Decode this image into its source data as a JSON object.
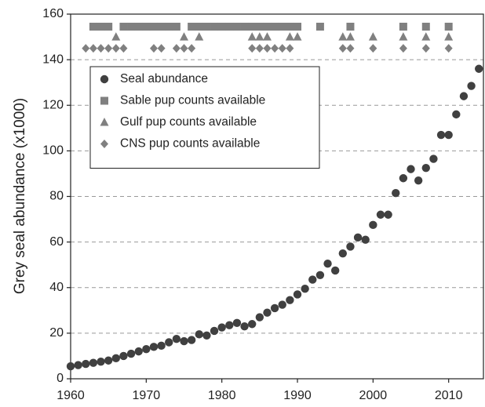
{
  "chart_data": {
    "type": "scatter",
    "ylabel": "Grey seal abundance (x1000)",
    "xlim": [
      1960,
      2014.6
    ],
    "ylim": [
      0,
      160
    ],
    "xticks": [
      1960,
      1970,
      1980,
      1990,
      2000,
      2010
    ],
    "yticks": [
      0,
      20,
      40,
      60,
      80,
      100,
      120,
      140,
      160
    ],
    "grid": true,
    "legend": "upper left",
    "series": [
      {
        "name": "Seal abundance",
        "marker": "circle",
        "color": "#404040",
        "x": [
          1960,
          1961,
          1962,
          1963,
          1964,
          1965,
          1966,
          1967,
          1968,
          1969,
          1970,
          1971,
          1972,
          1973,
          1974,
          1975,
          1976,
          1977,
          1978,
          1979,
          1980,
          1981,
          1982,
          1983,
          1984,
          1985,
          1986,
          1987,
          1988,
          1989,
          1990,
          1991,
          1992,
          1993,
          1994,
          1995,
          1996,
          1997,
          1998,
          1999,
          2000,
          2001,
          2002,
          2003,
          2004,
          2005,
          2006,
          2007,
          2008,
          2009,
          2010,
          2011,
          2012,
          2013,
          2014
        ],
        "values": [
          5.5,
          6,
          6.5,
          7,
          7.5,
          8,
          9,
          10,
          11,
          12,
          13,
          14,
          14.5,
          16,
          17.5,
          16.5,
          17,
          19.5,
          19,
          21,
          22.5,
          23.5,
          24.5,
          23,
          24,
          27,
          29,
          31,
          32.5,
          34.5,
          37,
          39.5,
          43.5,
          45.5,
          50.5,
          47.5,
          55,
          58,
          62,
          61,
          67.5,
          72,
          72,
          81.5,
          88,
          92,
          87,
          92.5,
          96.5,
          107,
          107,
          116,
          124,
          128.5,
          136
        ]
      },
      {
        "name": "Sable pup counts available",
        "marker": "square",
        "color": "#808080",
        "x": [
          1963,
          1964,
          1965,
          1967,
          1968,
          1969,
          1970,
          1971,
          1972,
          1973,
          1974,
          1976,
          1977,
          1978,
          1979,
          1980,
          1981,
          1982,
          1983,
          1984,
          1985,
          1986,
          1987,
          1988,
          1989,
          1990,
          1993,
          1997,
          2004,
          2007,
          2010
        ],
        "values": [
          154.5,
          154.5,
          154.5,
          154.5,
          154.5,
          154.5,
          154.5,
          154.5,
          154.5,
          154.5,
          154.5,
          154.5,
          154.5,
          154.5,
          154.5,
          154.5,
          154.5,
          154.5,
          154.5,
          154.5,
          154.5,
          154.5,
          154.5,
          154.5,
          154.5,
          154.5,
          154.5,
          154.5,
          154.5,
          154.5,
          154.5
        ]
      },
      {
        "name": "Gulf pup counts available",
        "marker": "triangle",
        "color": "#808080",
        "x": [
          1966,
          1975,
          1977,
          1984,
          1985,
          1986,
          1989,
          1990,
          1996,
          1997,
          2000,
          2004,
          2007,
          2010
        ],
        "values": [
          150,
          150,
          150,
          150,
          150,
          150,
          150,
          150,
          150,
          150,
          150,
          150,
          150,
          150
        ]
      },
      {
        "name": "CNS pup counts available",
        "marker": "diamond",
        "color": "#808080",
        "x": [
          1962,
          1963,
          1964,
          1965,
          1966,
          1967,
          1971,
          1972,
          1974,
          1975,
          1976,
          1984,
          1985,
          1986,
          1987,
          1988,
          1989,
          1996,
          1997,
          2000,
          2004,
          2007,
          2010
        ],
        "values": [
          145,
          145,
          145,
          145,
          145,
          145,
          145,
          145,
          145,
          145,
          145,
          145,
          145,
          145,
          145,
          145,
          145,
          145,
          145,
          145,
          145,
          145,
          145
        ]
      }
    ]
  }
}
